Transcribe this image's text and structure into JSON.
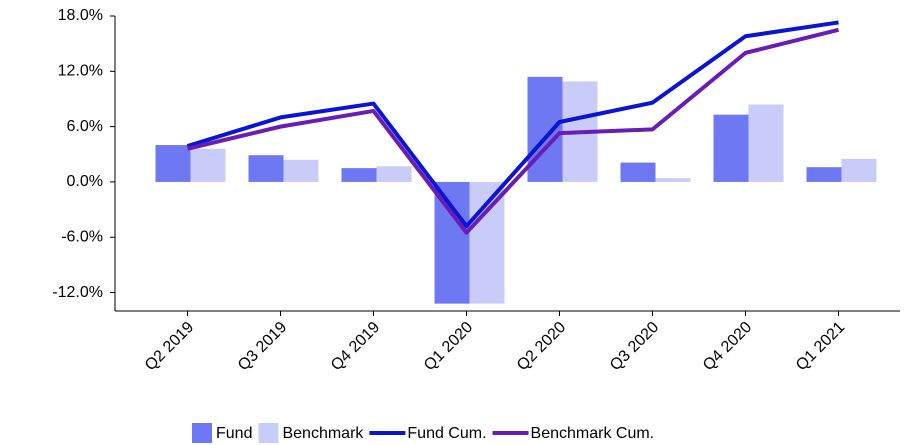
{
  "chart_data": {
    "type": "bar",
    "categories": [
      "Q2 2019",
      "Q3 2019",
      "Q4 2019",
      "Q1 2020",
      "Q2 2020",
      "Q3 2020",
      "Q4 2020",
      "Q1 2021"
    ],
    "series": [
      {
        "name": "Fund",
        "type": "bar",
        "color": "#6e78f2",
        "values": [
          4.0,
          2.9,
          1.5,
          -13.2,
          11.4,
          2.1,
          7.3,
          1.6
        ]
      },
      {
        "name": "Benchmark",
        "type": "bar",
        "color": "#c9ccf8",
        "values": [
          3.6,
          2.4,
          1.7,
          -13.2,
          10.9,
          0.4,
          8.4,
          2.5
        ]
      },
      {
        "name": "Fund Cum.",
        "type": "line",
        "color": "#0a14d6",
        "values": [
          3.9,
          7.0,
          8.5,
          -4.8,
          6.5,
          8.6,
          15.8,
          17.3
        ]
      },
      {
        "name": "Benchmark Cum.",
        "type": "line",
        "color": "#6a1cb6",
        "values": [
          3.6,
          6.0,
          7.7,
          -5.5,
          5.3,
          5.7,
          14.0,
          16.5
        ]
      }
    ],
    "ylim": [
      -14,
      18
    ],
    "yticks": [
      {
        "value": -12,
        "label": "-12.0%"
      },
      {
        "value": -6,
        "label": "-6.0%"
      },
      {
        "value": 0,
        "label": "0.0%"
      },
      {
        "value": 6,
        "label": "6.0%"
      },
      {
        "value": 12,
        "label": "12.0%"
      },
      {
        "value": 18,
        "label": "18.0%"
      }
    ],
    "legend": "bottom"
  }
}
